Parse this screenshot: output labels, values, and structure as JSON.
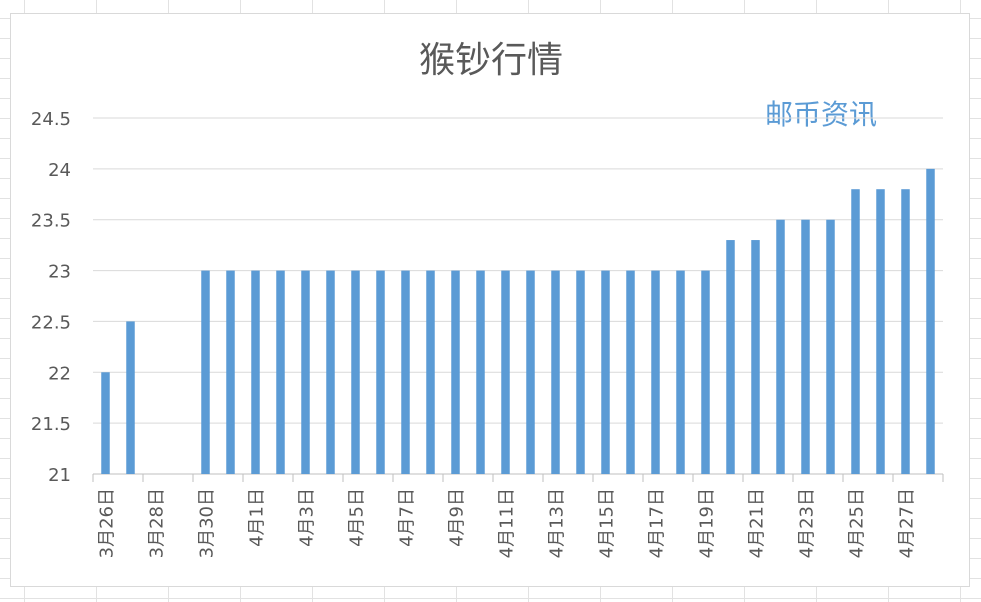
{
  "watermark": "邮币资讯",
  "colors": {
    "bar": "#5b9bd5",
    "watermark": "#5b9bd5",
    "text": "#595959"
  },
  "chart_data": {
    "type": "bar",
    "title": "猴钞行情",
    "xlabel": "",
    "ylabel": "",
    "ylim": [
      21,
      24.5
    ],
    "yticks": [
      "24.5",
      "24",
      "23.5",
      "23",
      "22.5",
      "22",
      "21.5",
      "21"
    ],
    "grid": true,
    "legend": "none",
    "categories": [
      "3月26日",
      "3月27日",
      "3月28日",
      "3月29日",
      "3月30日",
      "3月31日",
      "4月1日",
      "4月2日",
      "4月3日",
      "4月4日",
      "4月5日",
      "4月6日",
      "4月7日",
      "4月8日",
      "4月9日",
      "4月10日",
      "4月11日",
      "4月12日",
      "4月13日",
      "4月14日",
      "4月15日",
      "4月16日",
      "4月17日",
      "4月18日",
      "4月19日",
      "4月20日",
      "4月21日",
      "4月22日",
      "4月23日",
      "4月24日",
      "4月25日",
      "4月26日",
      "4月27日",
      "4月28日"
    ],
    "visible_tick_labels": [
      "3月26日",
      "3月28日",
      "3月30日",
      "4月1日",
      "4月3日",
      "4月5日",
      "4月7日",
      "4月9日",
      "4月11日",
      "4月13日",
      "4月15日",
      "4月17日",
      "4月19日",
      "4月21日",
      "4月23日",
      "4月25日",
      "4月27日"
    ],
    "values": [
      22,
      22.5,
      null,
      null,
      23,
      23,
      23,
      23,
      23,
      23,
      23,
      23,
      23,
      23,
      23,
      23,
      23,
      23,
      23,
      23,
      23,
      23,
      23,
      23,
      23,
      23.3,
      23.3,
      23.5,
      23.5,
      23.5,
      23.8,
      23.8,
      23.8,
      24
    ]
  }
}
